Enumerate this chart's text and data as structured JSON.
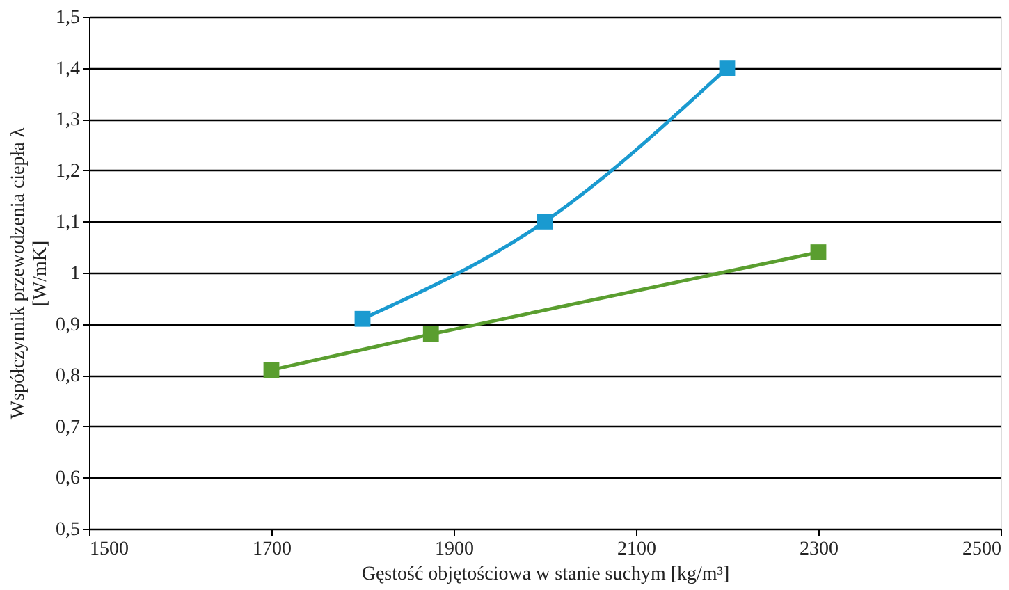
{
  "chart_data": {
    "type": "line",
    "xlabel": "Gęstość objętościowa w stanie suchym [kg/m³]",
    "ylabel": "Współczynnik przewodzenia ciepła λ\n[W/mK]",
    "series": [
      {
        "color": "#1a9ad0",
        "x": [
          1800,
          2000,
          2200
        ],
        "values": [
          0.91,
          1.1,
          1.4
        ]
      },
      {
        "color": "#5a9e2f",
        "x": [
          1700,
          1875,
          2300
        ],
        "values": [
          0.81,
          0.88,
          1.04
        ]
      }
    ],
    "xlim": [
      1500,
      2500
    ],
    "xticks": [
      1500,
      1700,
      1900,
      2100,
      2300,
      2500
    ],
    "ylim": [
      0.5,
      1.5
    ],
    "yticks": [
      {
        "value": 0.5,
        "label": "0,5"
      },
      {
        "value": 0.6,
        "label": "0,6"
      },
      {
        "value": 0.7,
        "label": "0,7"
      },
      {
        "value": 0.8,
        "label": "0,8"
      },
      {
        "value": 0.9,
        "label": "0,9"
      },
      1,
      {
        "value": 1.1,
        "label": "1,1"
      },
      {
        "value": 1.2,
        "label": "1,2"
      },
      {
        "value": 1.3,
        "label": "1,3"
      },
      {
        "value": 1.4,
        "label": "1,4"
      },
      {
        "value": 1.5,
        "label": "1,5"
      }
    ],
    "grid": "y",
    "marker": "square",
    "line_style": "solid"
  }
}
